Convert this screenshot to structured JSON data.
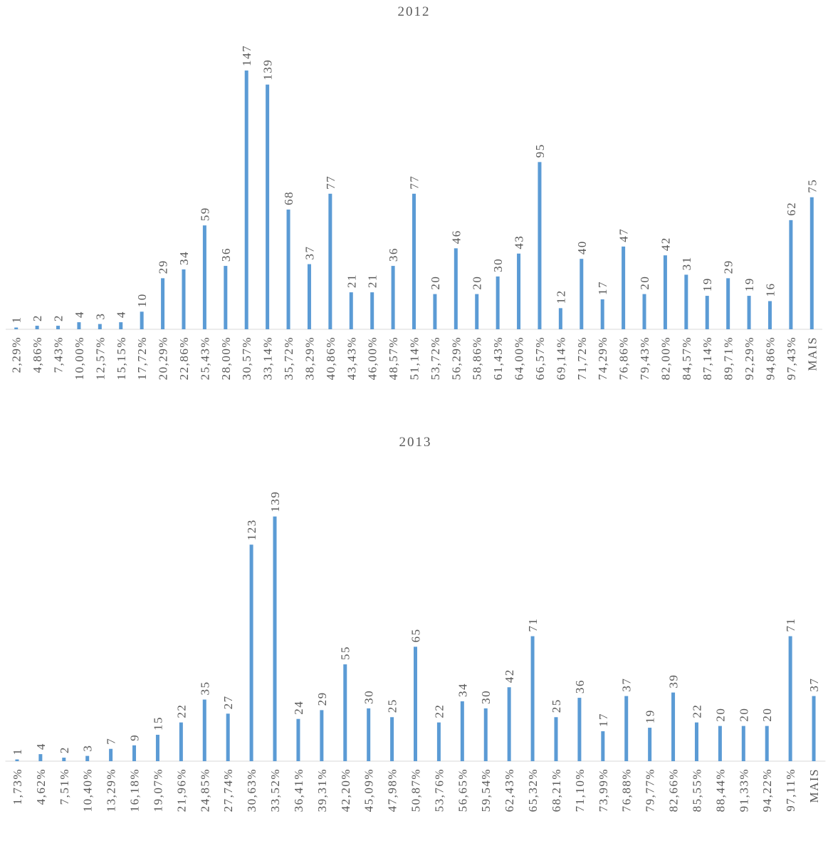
{
  "chart_data": [
    {
      "type": "bar",
      "title": "2012",
      "color": "#5b9bd5",
      "categories": [
        "2,29%",
        "4,86%",
        "7,43%",
        "10,00%",
        "12,57%",
        "15,15%",
        "17,72%",
        "20,29%",
        "22,86%",
        "25,43%",
        "28,00%",
        "30,57%",
        "33,14%",
        "35,72%",
        "38,29%",
        "40,86%",
        "43,43%",
        "46,00%",
        "48,57%",
        "51,14%",
        "53,72%",
        "56,29%",
        "58,86%",
        "61,43%",
        "64,00%",
        "66,57%",
        "69,14%",
        "71,72%",
        "74,29%",
        "76,86%",
        "79,43%",
        "82,00%",
        "84,57%",
        "87,14%",
        "89,71%",
        "92,29%",
        "94,86%",
        "97,43%",
        "MAIS"
      ],
      "values": [
        1,
        2,
        2,
        4,
        3,
        4,
        10,
        29,
        34,
        59,
        36,
        147,
        139,
        68,
        37,
        77,
        21,
        21,
        36,
        77,
        20,
        46,
        20,
        30,
        43,
        95,
        12,
        40,
        17,
        47,
        20,
        42,
        31,
        19,
        29,
        19,
        16,
        62,
        75
      ]
    },
    {
      "type": "bar",
      "title": "2013",
      "color": "#5b9bd5",
      "categories": [
        "1,73%",
        "4,62%",
        "7,51%",
        "10,40%",
        "13,29%",
        "16,18%",
        "19,07%",
        "21,96%",
        "24,85%",
        "27,74%",
        "30,63%",
        "33,52%",
        "36,41%",
        "39,31%",
        "42,20%",
        "45,09%",
        "47,98%",
        "50,87%",
        "53,76%",
        "56,65%",
        "59,54%",
        "62,43%",
        "65,32%",
        "68,21%",
        "71,10%",
        "73,99%",
        "76,88%",
        "79,77%",
        "82,66%",
        "85,55%",
        "88,44%",
        "91,33%",
        "94,22%",
        "97,11%",
        "MAIS"
      ],
      "values": [
        1,
        4,
        2,
        3,
        7,
        9,
        15,
        22,
        35,
        27,
        123,
        139,
        24,
        29,
        55,
        30,
        25,
        65,
        22,
        34,
        30,
        42,
        71,
        25,
        36,
        17,
        37,
        19,
        39,
        22,
        20,
        20,
        20,
        71,
        37
      ]
    }
  ]
}
